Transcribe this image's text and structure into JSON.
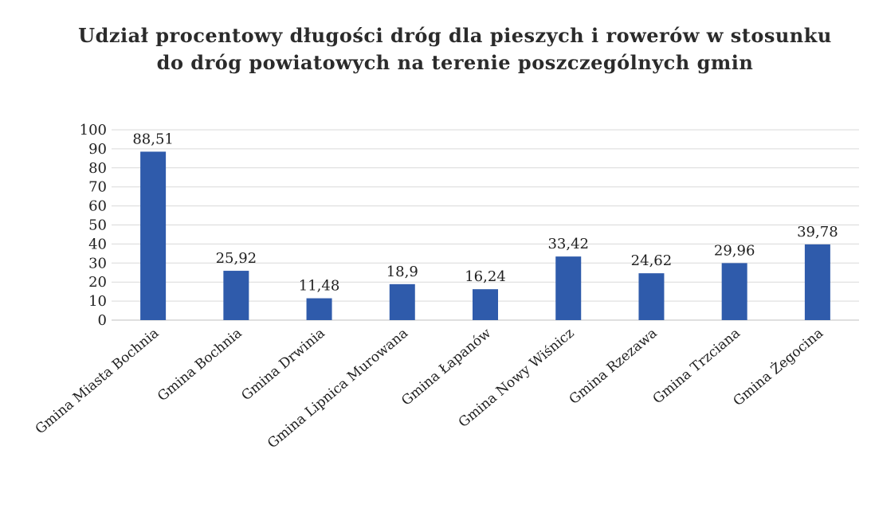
{
  "chart_data": {
    "type": "bar",
    "title": "Udział procentowy długości dróg dla pieszych i rowerów w stosunku do dróg powiatowych na terenie poszczególnych gmin",
    "categories": [
      "Gmina Miasta Bochnia",
      "Gmina Bochnia",
      "Gmina Drwinia",
      "Gmina Lipnica Murowana",
      "Gmina Łapanów",
      "Gmina Nowy Wiśnicz",
      "Gmina Rzezawa",
      "Gmina Trzciana",
      "Gmina Żegocina"
    ],
    "values": [
      88.51,
      25.92,
      11.48,
      18.9,
      16.24,
      33.42,
      24.62,
      29.96,
      39.78
    ],
    "value_labels": [
      "88,51",
      "25,92",
      "11,48",
      "18,9",
      "16,24",
      "33,42",
      "24,62",
      "29,96",
      "39,78"
    ],
    "y_ticks": [
      "0",
      "10",
      "20",
      "30",
      "40",
      "50",
      "60",
      "70",
      "80",
      "90",
      "100"
    ],
    "ylim": [
      0,
      100
    ],
    "xlabel": "",
    "ylabel": "",
    "grid": true,
    "legend": "none",
    "bar_color": "#2f5bab"
  }
}
